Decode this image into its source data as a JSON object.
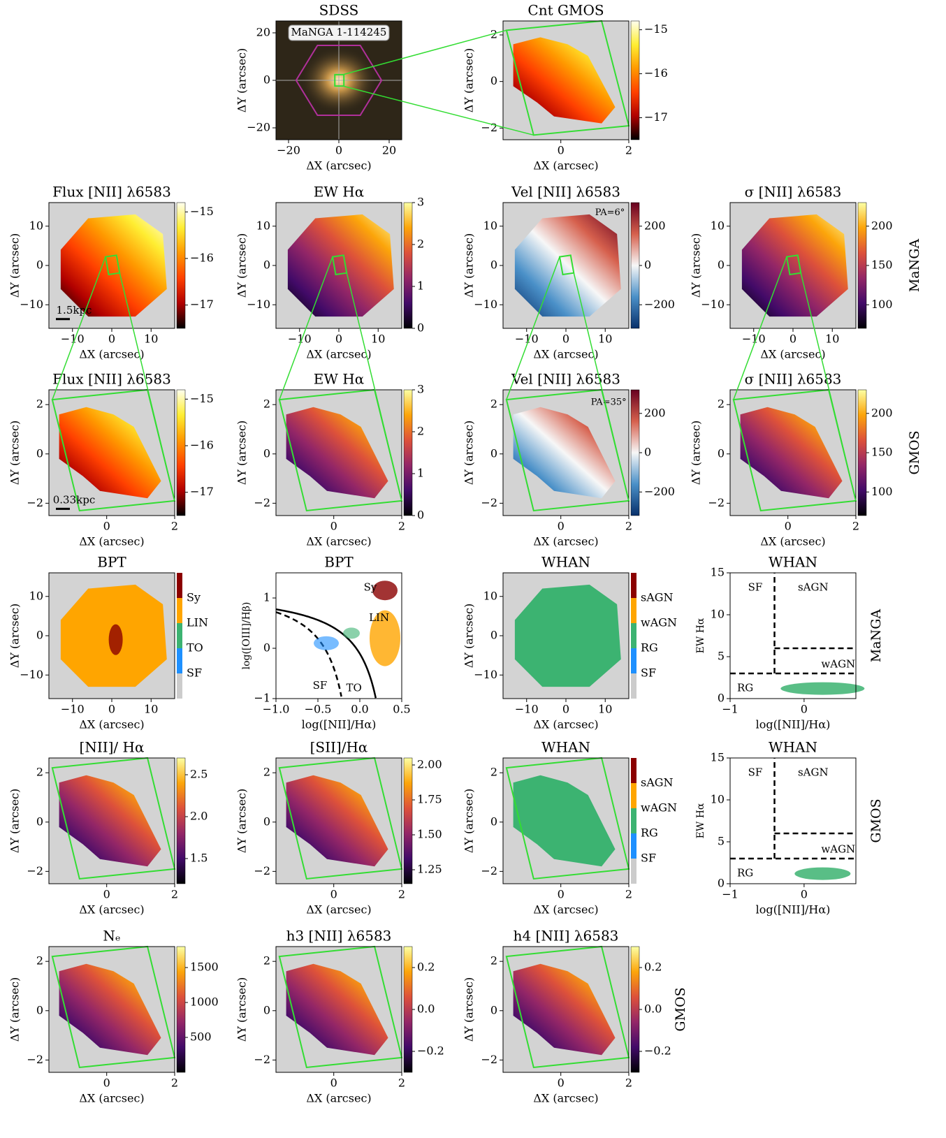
{
  "chart_data": [
    {
      "type": "map",
      "title": "SDSS",
      "xlabel": "ΔX (arcsec)",
      "ylabel": "ΔY (arcsec)",
      "xlim": [
        -25,
        25
      ],
      "ylim": [
        -25,
        25
      ],
      "xticks": [
        {
          "value": -20,
          "label": "−20"
        },
        0,
        20
      ],
      "yticks": [
        {
          "value": -20,
          "label": "−20"
        },
        0,
        20
      ],
      "annotations": [
        "MaNGA 1-114245"
      ]
    },
    {
      "type": "map",
      "title": "Cnt GMOS",
      "xlabel": "ΔX (arcsec)",
      "ylabel": "ΔY (arcsec)",
      "xlim": [
        -1.7,
        2
      ],
      "ylim": [
        -2.5,
        2.6
      ],
      "xticks": [
        0,
        2
      ],
      "yticks": [
        {
          "value": -2,
          "label": "−2"
        },
        0,
        2
      ],
      "clim": [
        -17.5,
        -14.8
      ],
      "cticks": [
        {
          "value": -15,
          "label": "−15"
        },
        {
          "value": -16,
          "label": "−16"
        },
        {
          "value": -17,
          "label": "−17"
        }
      ],
      "colormap": [
        "#000000",
        "#b00000",
        "#ff4000",
        "#ff9900",
        "#ffee33",
        "#ffffee"
      ]
    },
    {
      "type": "map",
      "title": "Flux [NII] λ6583",
      "xlabel": "ΔX (arcsec)",
      "ylabel": "ΔY (arcsec)",
      "xlim": [
        -16,
        16
      ],
      "ylim": [
        -16,
        16
      ],
      "xticks": [
        {
          "value": -10,
          "label": "−10"
        },
        0,
        10
      ],
      "yticks": [
        {
          "value": -10,
          "label": "−10"
        },
        0,
        10
      ],
      "clim": [
        -17.5,
        -14.8
      ],
      "cticks": [
        {
          "value": -15,
          "label": "−15"
        },
        {
          "value": -16,
          "label": "−16"
        },
        {
          "value": -17,
          "label": "−17"
        }
      ],
      "colormap": [
        "#000000",
        "#b00000",
        "#ff4000",
        "#ff9900",
        "#ffee33",
        "#ffffee"
      ],
      "annotations": [
        "1.5kpc"
      ]
    },
    {
      "type": "map",
      "title": "EW Hα",
      "xlabel": "ΔX (arcsec)",
      "ylabel": "ΔY (arcsec)",
      "xlim": [
        -16,
        16
      ],
      "ylim": [
        -16,
        16
      ],
      "xticks": [
        {
          "value": -10,
          "label": "−10"
        },
        0,
        10
      ],
      "yticks": [
        {
          "value": -10,
          "label": "−10"
        },
        0,
        10
      ],
      "clim": [
        0,
        3
      ],
      "cticks": [
        0,
        1,
        2,
        3
      ],
      "colormap": [
        "#000004",
        "#420a68",
        "#932667",
        "#dd513a",
        "#fca50a",
        "#fcffa4"
      ]
    },
    {
      "type": "map",
      "title": "Vel [NII] λ6583",
      "xlabel": "ΔX (arcsec)",
      "ylabel": "ΔY (arcsec)",
      "xlim": [
        -16,
        16
      ],
      "ylim": [
        -16,
        16
      ],
      "xticks": [
        {
          "value": -10,
          "label": "−10"
        },
        0,
        10
      ],
      "yticks": [
        {
          "value": -10,
          "label": "−10"
        },
        0,
        10
      ],
      "clim": [
        -320,
        320
      ],
      "cticks": [
        200,
        0,
        {
          "value": -200,
          "label": "−200"
        }
      ],
      "colormap": [
        "#08306b",
        "#4a90c8",
        "#f7f7f7",
        "#d6604d",
        "#67001f"
      ],
      "annotations": [
        "PA=6°"
      ]
    },
    {
      "type": "map",
      "title": "σ [NII] λ6583",
      "xlabel": "ΔX (arcsec)",
      "ylabel": "ΔY (arcsec)",
      "xlim": [
        -16,
        16
      ],
      "ylim": [
        -16,
        16
      ],
      "xticks": [
        {
          "value": -10,
          "label": "−10"
        },
        0,
        10
      ],
      "yticks": [
        {
          "value": -10,
          "label": "−10"
        },
        0,
        10
      ],
      "clim": [
        70,
        230
      ],
      "cticks": [
        100,
        150,
        200
      ],
      "colormap": [
        "#000004",
        "#420a68",
        "#932667",
        "#dd513a",
        "#fca50a",
        "#fcffa4"
      ],
      "side_label": "MaNGA"
    },
    {
      "type": "map",
      "title": "Flux [NII] λ6583",
      "xlabel": "ΔX (arcsec)",
      "ylabel": "ΔY (arcsec)",
      "xlim": [
        -1.7,
        2
      ],
      "ylim": [
        -2.5,
        2.6
      ],
      "xticks": [
        0,
        2
      ],
      "yticks": [
        {
          "value": -2,
          "label": "−2"
        },
        0,
        2
      ],
      "clim": [
        -17.5,
        -14.8
      ],
      "cticks": [
        {
          "value": -15,
          "label": "−15"
        },
        {
          "value": -16,
          "label": "−16"
        },
        {
          "value": -17,
          "label": "−17"
        }
      ],
      "colormap": [
        "#000000",
        "#b00000",
        "#ff4000",
        "#ff9900",
        "#ffee33",
        "#ffffee"
      ],
      "annotations": [
        "0.33kpc"
      ]
    },
    {
      "type": "map",
      "title": "EW Hα",
      "xlabel": "ΔX (arcsec)",
      "ylabel": "ΔY (arcsec)",
      "xlim": [
        -1.7,
        2
      ],
      "ylim": [
        -2.5,
        2.6
      ],
      "xticks": [
        0,
        2
      ],
      "yticks": [
        {
          "value": -2,
          "label": "−2"
        },
        0,
        2
      ],
      "clim": [
        0,
        3
      ],
      "cticks": [
        0,
        1,
        2,
        3
      ],
      "colormap": [
        "#000004",
        "#420a68",
        "#932667",
        "#dd513a",
        "#fca50a",
        "#fcffa4"
      ]
    },
    {
      "type": "map",
      "title": "Vel [NII] λ6583",
      "xlabel": "ΔX (arcsec)",
      "ylabel": "ΔY (arcsec)",
      "xlim": [
        -1.7,
        2
      ],
      "ylim": [
        -2.5,
        2.6
      ],
      "xticks": [
        0,
        2
      ],
      "yticks": [
        {
          "value": -2,
          "label": "−2"
        },
        0,
        2
      ],
      "clim": [
        -320,
        320
      ],
      "cticks": [
        200,
        0,
        {
          "value": -200,
          "label": "−200"
        }
      ],
      "colormap": [
        "#08306b",
        "#4a90c8",
        "#f7f7f7",
        "#d6604d",
        "#67001f"
      ],
      "annotations": [
        "PA=35°"
      ]
    },
    {
      "type": "map",
      "title": "σ [NII] λ6583",
      "xlabel": "ΔX (arcsec)",
      "ylabel": "ΔY (arcsec)",
      "xlim": [
        -1.7,
        2
      ],
      "ylim": [
        -2.5,
        2.6
      ],
      "xticks": [
        0,
        2
      ],
      "yticks": [
        {
          "value": -2,
          "label": "−2"
        },
        0,
        2
      ],
      "clim": [
        70,
        230
      ],
      "cticks": [
        100,
        150,
        200
      ],
      "colormap": [
        "#000004",
        "#420a68",
        "#932667",
        "#dd513a",
        "#fca50a",
        "#fcffa4"
      ],
      "side_label": "GMOS"
    },
    {
      "type": "map",
      "title": "BPT",
      "xlabel": "ΔX (arcsec)",
      "ylabel": "ΔY (arcsec)",
      "xlim": [
        -16,
        16
      ],
      "ylim": [
        -16,
        16
      ],
      "xticks": [
        {
          "value": -10,
          "label": "−10"
        },
        0,
        10
      ],
      "yticks": [
        {
          "value": -10,
          "label": "−10"
        },
        0,
        10
      ],
      "categories": [
        "Sy",
        "LIN",
        "TO",
        "SF"
      ],
      "colors": [
        "#8b0000",
        "#ffa500",
        "#3cb371",
        "#1e90ff",
        "#cccccc"
      ]
    },
    {
      "type": "scatter",
      "title": "BPT",
      "xlabel": "log([NII]/Hα)",
      "ylabel": "log([OIII]/Hβ)",
      "xlim": [
        -1,
        0.5
      ],
      "ylim": [
        -1,
        1.5
      ],
      "xticks": [
        {
          "value": -1,
          "label": "−1.0"
        },
        {
          "value": -0.5,
          "label": "−0.5"
        },
        {
          "value": 0,
          "label": "0.0"
        },
        0.5
      ],
      "yticks": [
        {
          "value": -1,
          "label": "−1"
        },
        0,
        1
      ],
      "annotations": [
        "SF",
        "TO",
        "Sy",
        "LIN"
      ],
      "colors": [
        "#8b0000",
        "#ffa500",
        "#3cb371",
        "#1e90ff"
      ]
    },
    {
      "type": "map",
      "title": "WHAN",
      "xlabel": "ΔX (arcsec)",
      "ylabel": "ΔY (arcsec)",
      "xlim": [
        -16,
        16
      ],
      "ylim": [
        -16,
        16
      ],
      "xticks": [
        {
          "value": -10,
          "label": "−10"
        },
        0,
        10
      ],
      "yticks": [
        {
          "value": -10,
          "label": "−10"
        },
        0,
        10
      ],
      "categories": [
        "sAGN",
        "wAGN",
        "RG",
        "SF"
      ],
      "colors": [
        "#8b0000",
        "#ffa500",
        "#3cb371",
        "#1e90ff",
        "#cccccc"
      ]
    },
    {
      "type": "scatter",
      "title": "WHAN",
      "xlabel": "log([NII]/Hα)",
      "ylabel": "EW Hα",
      "xlim": [
        -1,
        0.7
      ],
      "ylim": [
        0,
        15
      ],
      "xticks": [
        {
          "value": -1,
          "label": "−1"
        },
        0
      ],
      "yticks": [
        0,
        5,
        10,
        15
      ],
      "annotations": [
        "SF",
        "sAGN",
        "wAGN",
        "RG"
      ],
      "colors": [
        "#3cb371"
      ],
      "side_label": "MaNGA"
    },
    {
      "type": "map",
      "title": "[NII]/ Hα",
      "xlabel": "ΔX (arcsec)",
      "ylabel": "ΔY (arcsec)",
      "xlim": [
        -1.7,
        2
      ],
      "ylim": [
        -2.5,
        2.6
      ],
      "xticks": [
        0,
        2
      ],
      "yticks": [
        {
          "value": -2,
          "label": "−2"
        },
        0,
        2
      ],
      "clim": [
        1.2,
        2.7
      ],
      "cticks": [
        1.5,
        {
          "value": 2,
          "label": "2.0"
        },
        2.5
      ],
      "colormap": [
        "#000004",
        "#420a68",
        "#932667",
        "#dd513a",
        "#fca50a",
        "#fcffa4"
      ]
    },
    {
      "type": "map",
      "title": "[SII]/Hα",
      "xlabel": "ΔX (arcsec)",
      "ylabel": "ΔY (arcsec)",
      "xlim": [
        -1.7,
        2
      ],
      "ylim": [
        -2.5,
        2.6
      ],
      "xticks": [
        0,
        2
      ],
      "yticks": [
        {
          "value": -2,
          "label": "−2"
        },
        0,
        2
      ],
      "clim": [
        1.15,
        2.05
      ],
      "cticks": [
        1.25,
        {
          "value": 1.5,
          "label": "1.50"
        },
        1.75,
        {
          "value": 2,
          "label": "2.00"
        }
      ],
      "colormap": [
        "#000004",
        "#420a68",
        "#932667",
        "#dd513a",
        "#fca50a",
        "#fcffa4"
      ]
    },
    {
      "type": "map",
      "title": "WHAN",
      "xlabel": "ΔX (arcsec)",
      "ylabel": "ΔY (arcsec)",
      "xlim": [
        -1.7,
        2
      ],
      "ylim": [
        -2.5,
        2.6
      ],
      "xticks": [
        0,
        2
      ],
      "yticks": [
        {
          "value": -2,
          "label": "−2"
        },
        0,
        2
      ],
      "categories": [
        "sAGN",
        "wAGN",
        "RG",
        "SF"
      ],
      "colors": [
        "#8b0000",
        "#ffa500",
        "#3cb371",
        "#1e90ff",
        "#cccccc"
      ]
    },
    {
      "type": "scatter",
      "title": "WHAN",
      "xlabel": "log([NII]/Hα)",
      "ylabel": "EW Hα",
      "xlim": [
        -1,
        0.7
      ],
      "ylim": [
        0,
        15
      ],
      "xticks": [
        {
          "value": -1,
          "label": "−1"
        },
        0
      ],
      "yticks": [
        0,
        5,
        10,
        15
      ],
      "annotations": [
        "SF",
        "sAGN",
        "wAGN",
        "RG"
      ],
      "colors": [
        "#3cb371"
      ],
      "side_label": "GMOS"
    },
    {
      "type": "map",
      "title": "Nₑ",
      "xlabel": "ΔX (arcsec)",
      "ylabel": "ΔY (arcsec)",
      "xlim": [
        -1.7,
        2
      ],
      "ylim": [
        -2.5,
        2.6
      ],
      "xticks": [
        0,
        2
      ],
      "yticks": [
        {
          "value": -2,
          "label": "−2"
        },
        0,
        2
      ],
      "clim": [
        0,
        1800
      ],
      "cticks": [
        500,
        1000,
        1500
      ],
      "colormap": [
        "#000004",
        "#420a68",
        "#932667",
        "#dd513a",
        "#fca50a",
        "#fcffa4"
      ]
    },
    {
      "type": "map",
      "title": "h3 [NII] λ6583",
      "xlabel": "ΔX (arcsec)",
      "ylabel": "ΔY (arcsec)",
      "xlim": [
        -1.7,
        2
      ],
      "ylim": [
        -2.5,
        2.6
      ],
      "xticks": [
        0,
        2
      ],
      "yticks": [
        {
          "value": -2,
          "label": "−2"
        },
        0,
        2
      ],
      "clim": [
        -0.3,
        0.3
      ],
      "cticks": [
        0.2,
        {
          "value": 0,
          "label": "0.0"
        },
        {
          "value": -0.2,
          "label": "−0.2"
        }
      ],
      "colormap": [
        "#000004",
        "#420a68",
        "#932667",
        "#dd513a",
        "#fca50a",
        "#fcffa4"
      ]
    },
    {
      "type": "map",
      "title": "h4 [NII] λ6583",
      "xlabel": "ΔX (arcsec)",
      "ylabel": "ΔY (arcsec)",
      "xlim": [
        -1.7,
        2
      ],
      "ylim": [
        -2.5,
        2.6
      ],
      "xticks": [
        0,
        2
      ],
      "yticks": [
        {
          "value": -2,
          "label": "−2"
        },
        0,
        2
      ],
      "clim": [
        -0.3,
        0.3
      ],
      "cticks": [
        0.2,
        {
          "value": 0,
          "label": "0.0"
        },
        {
          "value": -0.2,
          "label": "−0.2"
        }
      ],
      "colormap": [
        "#000004",
        "#420a68",
        "#932667",
        "#dd513a",
        "#fca50a",
        "#fcffa4"
      ],
      "side_label": "GMOS"
    }
  ]
}
